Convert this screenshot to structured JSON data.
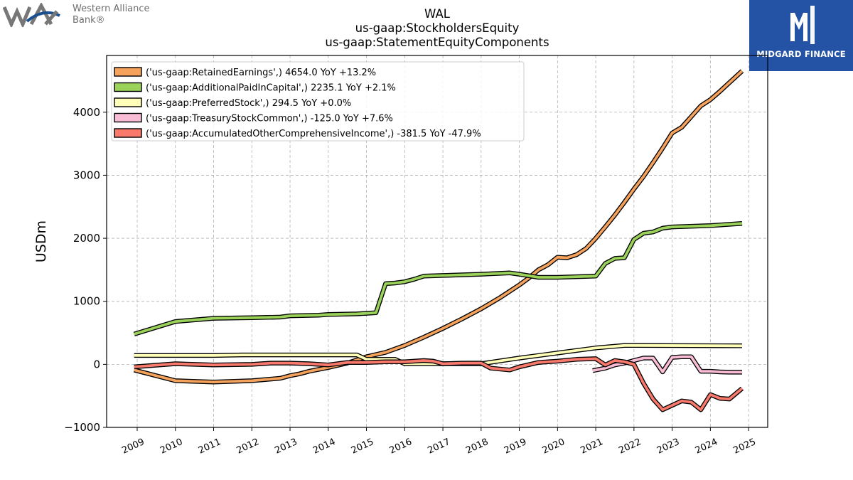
{
  "header": {
    "left_logo": {
      "line1": "Western Alliance",
      "line2": "Bank®",
      "icon": "wa-logo-icon"
    },
    "right_logo": {
      "brand": "MIDGARD FINANCE",
      "icon": "midgard-logo-icon",
      "bg_color": "#2453a6"
    }
  },
  "chart_data": {
    "type": "line",
    "title": "WAL",
    "subtitle_lines": [
      "us-gaap:StockholdersEquity",
      "us-gaap:StatementEquityComponents"
    ],
    "xlabel": "",
    "ylabel": "USDm",
    "xlim": [
      2008.2,
      2025.5
    ],
    "ylim": [
      -1000,
      4900
    ],
    "yticks": [
      -1000,
      0,
      1000,
      2000,
      3000,
      4000
    ],
    "ytick_labels": [
      "−1000",
      "0",
      "1000",
      "2000",
      "3000",
      "4000"
    ],
    "xticks": [
      2009,
      2010,
      2011,
      2012,
      2013,
      2014,
      2015,
      2016,
      2017,
      2018,
      2019,
      2020,
      2021,
      2022,
      2023,
      2024,
      2025
    ],
    "xtick_labels": [
      "2009",
      "2010",
      "2011",
      "2012",
      "2013",
      "2014",
      "2015",
      "2016",
      "2017",
      "2018",
      "2019",
      "2020",
      "2021",
      "2022",
      "2023",
      "2024",
      "2025"
    ],
    "grid": true,
    "legend_position": "upper-left",
    "series": [
      {
        "name": "('us-gaap:RetainedEarnings',) 4654.0 YoY +13.2%",
        "color": "#f5a25d",
        "x": [
          2008.92,
          2010.0,
          2011.0,
          2012.0,
          2012.75,
          2013.0,
          2013.25,
          2013.5,
          2014.0,
          2014.5,
          2015.0,
          2015.5,
          2016.0,
          2016.5,
          2017.0,
          2017.5,
          2018.0,
          2018.5,
          2019.0,
          2019.25,
          2019.5,
          2019.75,
          2020.0,
          2020.25,
          2020.5,
          2020.75,
          2021.0,
          2021.25,
          2021.5,
          2021.75,
          2022.0,
          2022.25,
          2022.5,
          2022.75,
          2023.0,
          2023.25,
          2023.5,
          2023.75,
          2024.0,
          2024.25,
          2024.5,
          2024.83
        ],
        "y": [
          -90,
          -260,
          -280,
          -260,
          -220,
          -180,
          -150,
          -110,
          -50,
          20,
          120,
          190,
          300,
          430,
          570,
          720,
          880,
          1060,
          1260,
          1370,
          1500,
          1580,
          1700,
          1690,
          1740,
          1840,
          2000,
          2180,
          2370,
          2570,
          2780,
          2980,
          3200,
          3430,
          3670,
          3760,
          3930,
          4100,
          4200,
          4330,
          4470,
          4654
        ]
      },
      {
        "name": "('us-gaap:AdditionalPaidInCapital',) 2235.1 YoY +2.1%",
        "color": "#9bd35a",
        "x": [
          2008.92,
          2010.0,
          2011.0,
          2012.0,
          2012.75,
          2013.0,
          2013.75,
          2014.0,
          2014.75,
          2015.0,
          2015.25,
          2015.5,
          2015.75,
          2016.0,
          2016.25,
          2016.5,
          2017.0,
          2018.0,
          2018.75,
          2019.0,
          2019.5,
          2020.0,
          2020.5,
          2021.0,
          2021.25,
          2021.5,
          2021.75,
          2022.0,
          2022.25,
          2022.5,
          2022.75,
          2023.0,
          2024.0,
          2024.83
        ],
        "y": [
          480,
          680,
          730,
          740,
          750,
          770,
          780,
          790,
          800,
          810,
          820,
          1280,
          1290,
          1310,
          1350,
          1400,
          1410,
          1430,
          1450,
          1430,
          1380,
          1380,
          1390,
          1400,
          1600,
          1680,
          1690,
          1980,
          2080,
          2100,
          2160,
          2180,
          2200,
          2235
        ]
      },
      {
        "name": "('us-gaap:PreferredStock',) 294.5 YoY +0.0%",
        "color": "#ffffb8",
        "x": [
          2008.92,
          2011.0,
          2011.75,
          2014.0,
          2014.75,
          2015.0,
          2015.75,
          2016.0,
          2018.0,
          2019.0,
          2020.0,
          2021.0,
          2021.75,
          2022.0,
          2024.83
        ],
        "y": [
          140,
          140,
          150,
          150,
          150,
          80,
          80,
          10,
          10,
          100,
          180,
          260,
          300,
          300,
          294.5
        ]
      },
      {
        "name": "('us-gaap:TreasuryStockCommon',) -125.0 YoY +7.6%",
        "color": "#f9bcd5",
        "x": [
          2020.92,
          2021.25,
          2021.5,
          2021.75,
          2022.0,
          2022.25,
          2022.5,
          2022.75,
          2023.0,
          2023.25,
          2023.5,
          2023.75,
          2024.0,
          2024.25,
          2024.5,
          2024.83
        ],
        "y": [
          -100,
          -60,
          -10,
          20,
          60,
          100,
          100,
          -120,
          110,
          120,
          120,
          -110,
          -110,
          -120,
          -125,
          -125
        ]
      },
      {
        "name": "('us-gaap:AccumulatedOtherComprehensiveIncome',) -381.5 YoY -47.9%",
        "color": "#f97a6c",
        "x": [
          2008.92,
          2010.0,
          2011.0,
          2012.0,
          2012.5,
          2013.0,
          2013.5,
          2014.0,
          2014.5,
          2015.0,
          2015.5,
          2016.0,
          2016.5,
          2016.75,
          2017.0,
          2017.5,
          2018.0,
          2018.25,
          2018.75,
          2019.0,
          2019.5,
          2020.0,
          2020.5,
          2021.0,
          2021.25,
          2021.5,
          2021.75,
          2022.0,
          2022.25,
          2022.5,
          2022.75,
          2023.0,
          2023.25,
          2023.5,
          2023.75,
          2024.0,
          2024.25,
          2024.5,
          2024.83
        ],
        "y": [
          -40,
          10,
          -10,
          0,
          20,
          20,
          10,
          -10,
          30,
          30,
          40,
          40,
          60,
          50,
          10,
          20,
          20,
          -60,
          -90,
          -40,
          30,
          50,
          80,
          90,
          -10,
          60,
          40,
          0,
          -300,
          -550,
          -720,
          -650,
          -580,
          -600,
          -720,
          -480,
          -540,
          -550,
          -381.5
        ]
      }
    ]
  }
}
